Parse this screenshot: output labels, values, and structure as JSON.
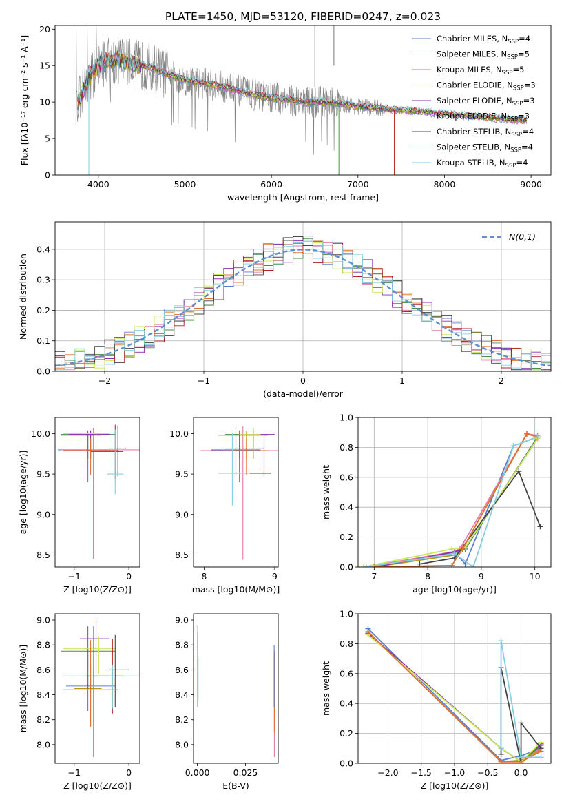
{
  "figure": {
    "title": "PLATE=1450, MJD=53120, FIBERID=0247, z=0.023"
  },
  "chart_data": [
    {
      "id": "spectrum",
      "type": "line",
      "xlabel": "wavelength [Angstrom, rest frame]",
      "ylabel": "Flux [fλ10⁻¹⁷ erg cm⁻² s⁻¹ A⁻¹]",
      "xlim": [
        3500,
        9230
      ],
      "ylim": [
        0,
        20.5
      ],
      "xticks": [
        4000,
        5000,
        6000,
        7000,
        8000,
        9000
      ],
      "yticks": [
        0,
        5,
        10,
        15,
        20
      ],
      "grid": false,
      "legend_position": "top-right",
      "data": {
        "x": [
          3750,
          3900,
          4050,
          4200,
          4400,
          4600,
          4800,
          5000,
          5200,
          5400,
          5600,
          5800,
          6000,
          6200,
          6400,
          6600,
          6800,
          7000,
          7200,
          7400,
          7600,
          7800,
          8000,
          8200,
          8400,
          8600,
          8800,
          8950
        ],
        "y": [
          9.5,
          13.5,
          15.5,
          15.8,
          15.2,
          14.8,
          13.8,
          13.0,
          12.6,
          12.2,
          11.6,
          11.0,
          10.6,
          10.3,
          10.0,
          10.0,
          9.8,
          9.4,
          9.2,
          9.0,
          8.8,
          8.6,
          8.4,
          8.2,
          8.0,
          7.8,
          7.6,
          7.5
        ]
      },
      "series": [
        {
          "name": "Chabrier MILES, N_SSP=4",
          "label_main": "Chabrier MILES, N",
          "label_sub": "SSP",
          "label_end": "=4",
          "color": "#5b7fcf"
        },
        {
          "name": "Salpeter MILES, N_SSP=5",
          "label_main": "Salpeter MILES, N",
          "label_sub": "SSP",
          "label_end": "=5",
          "color": "#e87aa6"
        },
        {
          "name": "Kroupa MILES, N_SSP=5",
          "label_main": "Kroupa MILES, N",
          "label_sub": "SSP",
          "label_end": "=5",
          "color": "#b8961e"
        },
        {
          "name": "Chabrier ELODIE, N_SSP=3",
          "label_main": "Chabrier ELODIE, N",
          "label_sub": "SSP",
          "label_end": "=3",
          "color": "#4a8a4a"
        },
        {
          "name": "Salpeter ELODIE, N_SSP=3",
          "label_main": "Salpeter ELODIE, N",
          "label_sub": "SSP",
          "label_end": "=3",
          "color": "#8e2fae"
        },
        {
          "name": "Kroupa ELODIE, N_SSP=3",
          "label_main": "Kroupa ELODIE, N",
          "label_sub": "SSP",
          "label_end": "=3",
          "color": "#c8e85a"
        },
        {
          "name": "Chabrier STELIB, N_SSP=4",
          "label_main": "Chabrier STELIB, N",
          "label_sub": "SSP",
          "label_end": "=4",
          "color": "#444444"
        },
        {
          "name": "Salpeter STELIB, N_SSP=4",
          "label_main": "Salpeter STELIB, N",
          "label_sub": "SSP",
          "label_end": "=4",
          "color": "#b22222"
        },
        {
          "name": "Kroupa STELIB, N_SSP=4",
          "label_main": "Kroupa STELIB, N",
          "label_sub": "SSP",
          "label_end": "=4",
          "color": "#86cde0"
        }
      ]
    },
    {
      "id": "residuals",
      "type": "line",
      "xlabel": "(data-model)/error",
      "ylabel": "Normed distribution",
      "xlim": [
        -2.5,
        2.5
      ],
      "ylim": [
        0,
        0.49
      ],
      "xticks": [
        -2,
        -1,
        0,
        1,
        2
      ],
      "yticks": [
        0.0,
        0.1,
        0.2,
        0.3,
        0.4
      ],
      "grid": true,
      "legend_position": "top-right",
      "legend_label": "N(0,1)",
      "gaussian": {
        "mean": 0,
        "sigma": 1,
        "color": "#5b8fd0"
      }
    },
    {
      "id": "age-Z",
      "type": "scatter",
      "xlabel": "Z [log10(Z/Z⊙)]",
      "ylabel": "age  [log10(age/yr)]",
      "xlim": [
        -1.35,
        0.2
      ],
      "ylim": [
        8.35,
        10.2
      ],
      "xticks": [
        -1,
        0
      ],
      "yticks": [
        8.5,
        9.0,
        9.5,
        10.0
      ],
      "grid": false
    },
    {
      "id": "age-mass",
      "type": "scatter",
      "xlabel": "mass [log10(M/M⊙)]",
      "ylabel": "",
      "xlim": [
        7.85,
        9.05
      ],
      "ylim": [
        8.35,
        10.2
      ],
      "xticks": [
        8,
        9
      ],
      "yticks": [
        8.5,
        9.0,
        9.5,
        10.0
      ],
      "grid": false
    },
    {
      "id": "weight-age",
      "type": "line",
      "xlabel": "age  [log10(age/yr)]",
      "ylabel": "mass weight",
      "xlim": [
        6.7,
        10.3
      ],
      "ylim": [
        0,
        1.0
      ],
      "xticks": [
        7,
        8,
        9,
        10
      ],
      "yticks": [
        0.0,
        0.2,
        0.4,
        0.6,
        0.8,
        1.0
      ],
      "grid": true,
      "series": [
        {
          "color": "#5b7fcf",
          "x": [
            6.85,
            8.5,
            8.7,
            9.6,
            10.05
          ],
          "y": [
            0.0,
            0.1,
            0.02,
            0.81,
            0.87
          ]
        },
        {
          "color": "#e87aa6",
          "x": [
            6.85,
            8.45,
            8.6,
            9.85,
            10.05
          ],
          "y": [
            0.0,
            0.1,
            0.12,
            0.89,
            0.88
          ]
        },
        {
          "color": "#b8961e",
          "x": [
            7.0,
            8.5,
            8.65,
            9.85,
            10.05
          ],
          "y": [
            0.0,
            0.08,
            0.12,
            0.89,
            0.87
          ]
        },
        {
          "color": "#4a8a4a",
          "x": [
            7.0,
            8.5,
            8.7,
            10.05
          ],
          "y": [
            0.0,
            0.1,
            0.12,
            0.87
          ]
        },
        {
          "color": "#8e2fae",
          "x": [
            7.0,
            8.5,
            8.7,
            10.05
          ],
          "y": [
            0.0,
            0.1,
            0.13,
            0.86
          ]
        },
        {
          "color": "#c8e85a",
          "x": [
            6.8,
            8.45,
            8.7,
            10.05
          ],
          "y": [
            0.0,
            0.12,
            0.13,
            0.86
          ]
        },
        {
          "color": "#444444",
          "x": [
            7.85,
            8.5,
            9.7,
            10.1
          ],
          "y": [
            0.02,
            0.06,
            0.64,
            0.27
          ]
        },
        {
          "color": "#e07030",
          "x": [
            7.0,
            8.45,
            8.65,
            9.85,
            10.05
          ],
          "y": [
            0.0,
            0.01,
            0.12,
            0.89,
            0.87
          ]
        },
        {
          "color": "#86cde0",
          "x": [
            6.85,
            8.5,
            8.85,
            9.6,
            10.05
          ],
          "y": [
            0.0,
            0.09,
            0.0,
            0.81,
            0.87
          ]
        }
      ]
    },
    {
      "id": "mass-Z",
      "type": "scatter",
      "xlabel": "Z [log10(Z/Z⊙)]",
      "ylabel": "mass [log10(M/M⊙)]",
      "xlim": [
        -1.35,
        0.2
      ],
      "ylim": [
        7.85,
        9.05
      ],
      "xticks": [
        -1,
        0
      ],
      "yticks": [
        8.0,
        8.2,
        8.4,
        8.6,
        8.8,
        9.0
      ],
      "grid": false
    },
    {
      "id": "mass-EBV",
      "type": "scatter",
      "xlabel": "E(B-V)",
      "ylabel": "",
      "xlim": [
        -0.002,
        0.042
      ],
      "ylim": [
        7.85,
        9.05
      ],
      "xticks": [
        0.0,
        0.025
      ],
      "xtick_labels": [
        "0.000",
        "0.025"
      ],
      "yticks": [
        8.0,
        8.2,
        8.4,
        8.6,
        8.8,
        9.0
      ],
      "grid": false
    },
    {
      "id": "weight-Z",
      "type": "line",
      "xlabel": "Z [log10(Z/Z⊙)]",
      "ylabel": "mass weight",
      "xlim": [
        -2.45,
        0.45
      ],
      "ylim": [
        0,
        1.0
      ],
      "xticks": [
        -2.0,
        -1.5,
        -1.0,
        -0.5,
        0.0
      ],
      "yticks": [
        0.0,
        0.2,
        0.4,
        0.6,
        0.8,
        1.0
      ],
      "grid": true,
      "series": [
        {
          "color": "#5b7fcf",
          "x": [
            -2.3,
            -0.3,
            0.0,
            0.3
          ],
          "y": [
            0.9,
            0.02,
            0.05,
            0.1
          ]
        },
        {
          "color": "#e87aa6",
          "x": [
            -2.3,
            -0.3,
            0.0,
            0.3
          ],
          "y": [
            0.88,
            0.01,
            0.02,
            0.1
          ]
        },
        {
          "color": "#b8961e",
          "x": [
            -2.3,
            -0.3,
            0.0,
            0.3
          ],
          "y": [
            0.88,
            0.01,
            0.02,
            0.09
          ]
        },
        {
          "color": "#4a8a4a",
          "x": [
            -2.3,
            -0.3,
            0.0,
            0.3
          ],
          "y": [
            0.87,
            0.1,
            0.01,
            0.12
          ]
        },
        {
          "color": "#8e2fae",
          "x": [
            -2.3,
            -0.3,
            0.0,
            0.3
          ],
          "y": [
            0.87,
            0.1,
            0.01,
            0.13
          ]
        },
        {
          "color": "#c8e85a",
          "x": [
            -2.3,
            -0.3,
            0.0,
            0.3
          ],
          "y": [
            0.86,
            0.1,
            0.01,
            0.14
          ]
        },
        {
          "color": "#444444",
          "x": [
            -0.3,
            -0.3,
            0.0,
            0.0,
            0.3
          ],
          "y": [
            0.06,
            0.64,
            0.0,
            0.27,
            0.1
          ]
        },
        {
          "color": "#e07030",
          "x": [
            -2.3,
            -0.3,
            0.0,
            0.3
          ],
          "y": [
            0.88,
            0.01,
            0.01,
            0.08
          ]
        },
        {
          "color": "#86cde0",
          "x": [
            -0.3,
            -0.3,
            0.0,
            0.3
          ],
          "y": [
            0.1,
            0.82,
            0.04,
            0.04
          ]
        }
      ]
    }
  ]
}
